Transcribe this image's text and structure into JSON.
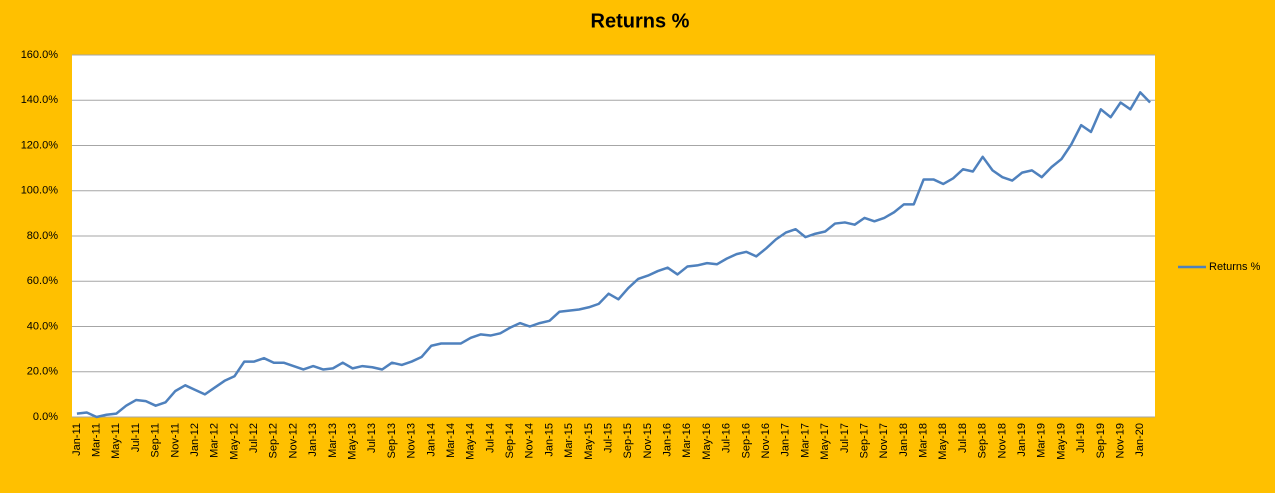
{
  "chart_data": {
    "type": "line",
    "title": "Returns %",
    "categories": [
      "Jan-11",
      null,
      "Mar-11",
      null,
      "May-11",
      null,
      "Jul-11",
      null,
      "Sep-11",
      null,
      "Nov-11",
      null,
      "Jan-12",
      null,
      "Mar-12",
      null,
      "May-12",
      null,
      "Jul-12",
      null,
      "Sep-12",
      null,
      "Nov-12",
      null,
      "Jan-13",
      null,
      "Mar-13",
      null,
      "May-13",
      null,
      "Jul-13",
      null,
      "Sep-13",
      null,
      "Nov-13",
      null,
      "Jan-14",
      null,
      "Mar-14",
      null,
      "May-14",
      null,
      "Jul-14",
      null,
      "Sep-14",
      null,
      "Nov-14",
      null,
      "Jan-15",
      null,
      "Mar-15",
      null,
      "May-15",
      null,
      "Jul-15",
      null,
      "Sep-15",
      null,
      "Nov-15",
      null,
      "Jan-16",
      null,
      "Mar-16",
      null,
      "May-16",
      null,
      "Jul-16",
      null,
      "Sep-16",
      null,
      "Nov-16",
      null,
      "Jan-17",
      null,
      "Mar-17",
      null,
      "May-17",
      null,
      "Jul-17",
      null,
      "Sep-17",
      null,
      "Nov-17",
      null,
      "Jan-18",
      null,
      "Mar-18",
      null,
      "May-18",
      null,
      "Jul-18",
      null,
      "Sep-18",
      null,
      "Nov-18",
      null,
      "Jan-19",
      null,
      "Mar-19",
      null,
      "May-19",
      null,
      "Jul-19",
      null,
      "Sep-19",
      null,
      "Nov-19",
      null,
      "Jan-20",
      null
    ],
    "series": [
      {
        "name": "Returns %",
        "color": "#4f81bd",
        "values": [
          1.5,
          2,
          0,
          1,
          1.5,
          5,
          7.5,
          7,
          5,
          6.5,
          11.5,
          14,
          12,
          10,
          13,
          16,
          18,
          24.5,
          24.5,
          26,
          24,
          24,
          22.5,
          21,
          22.5,
          21,
          21.5,
          24,
          21.5,
          22.5,
          22,
          21,
          24,
          23,
          24.5,
          26.5,
          31.5,
          32.5,
          32.5,
          32.5,
          35,
          36.5,
          36,
          37,
          39.5,
          41.5,
          40,
          41.5,
          42.5,
          46.5,
          47,
          47.5,
          48.5,
          50,
          54.5,
          52,
          57,
          61,
          62.5,
          64.5,
          66,
          63,
          66.5,
          67,
          68,
          67.5,
          70,
          72,
          73,
          71,
          74.5,
          78.5,
          81.5,
          83,
          79.5,
          81,
          82,
          85.5,
          86,
          85,
          88,
          86.5,
          88,
          90.5,
          94,
          94,
          105,
          105,
          103,
          105.5,
          109.5,
          108.5,
          115,
          109,
          106,
          104.5,
          108,
          109,
          106,
          110.5,
          114,
          120.5,
          129,
          126,
          136,
          132.5,
          139,
          136,
          143.5,
          139
        ]
      }
    ],
    "ylim": [
      0,
      160
    ],
    "yticks": [
      {
        "value": 0,
        "label": "0.0%"
      },
      {
        "value": 20,
        "label": "20.0%"
      },
      {
        "value": 40,
        "label": "40.0%"
      },
      {
        "value": 60,
        "label": "60.0%"
      },
      {
        "value": 80,
        "label": "80.0%"
      },
      {
        "value": 100,
        "label": "100.0%"
      },
      {
        "value": 120,
        "label": "120.0%"
      },
      {
        "value": 140,
        "label": "140.0%"
      },
      {
        "value": 160,
        "label": "160.0%"
      }
    ],
    "grid": true,
    "legend": "right"
  }
}
